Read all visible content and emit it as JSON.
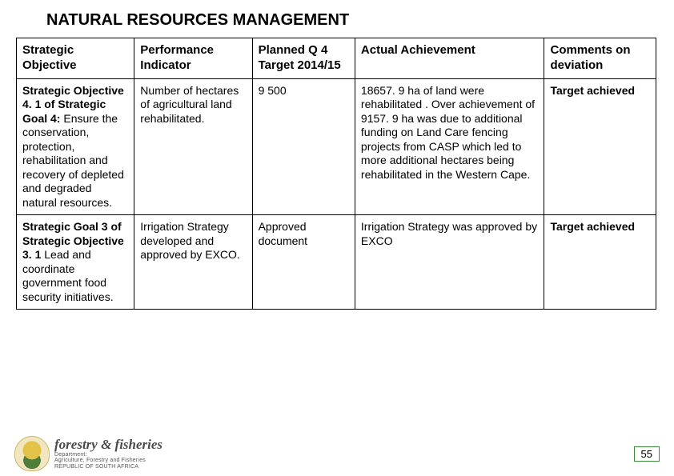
{
  "title": "NATURAL RESOURCES MANAGEMENT",
  "table": {
    "headers": [
      "Strategic Objective",
      "Performance Indicator",
      "Planned Q 4 Target 2014/15",
      "Actual Achievement",
      "Comments on deviation"
    ],
    "rows": [
      {
        "objective_lead": "Strategic Objective 4. 1 of Strategic Goal 4:",
        "objective_rest": "Ensure the conservation, protection, rehabilitation and recovery of depleted and degraded natural resources.",
        "indicator": "Number of hectares of agricultural land rehabilitated.",
        "target": "9 500",
        "achievement": "18657. 9 ha of land were rehabilitated . Over achievement of 9157. 9 ha was due to additional funding on Land Care fencing projects from CASP which led to more additional hectares being rehabilitated in the Western Cape.",
        "comments": "Target achieved"
      },
      {
        "objective_lead": "Strategic Goal 3 of Strategic Objective 3. 1",
        "objective_rest": "Lead and coordinate government food security initiatives.",
        "indicator": "Irrigation Strategy developed and approved by EXCO.",
        "target": "Approved document",
        "achievement": "Irrigation Strategy was approved by EXCO",
        "comments": "Target achieved"
      }
    ]
  },
  "brand": {
    "name": "forestry & fisheries",
    "sub1": "Department:",
    "sub2": "Agriculture, Forestry and Fisheries",
    "sub3": "REPUBLIC OF SOUTH AFRICA"
  },
  "page_number": "55"
}
